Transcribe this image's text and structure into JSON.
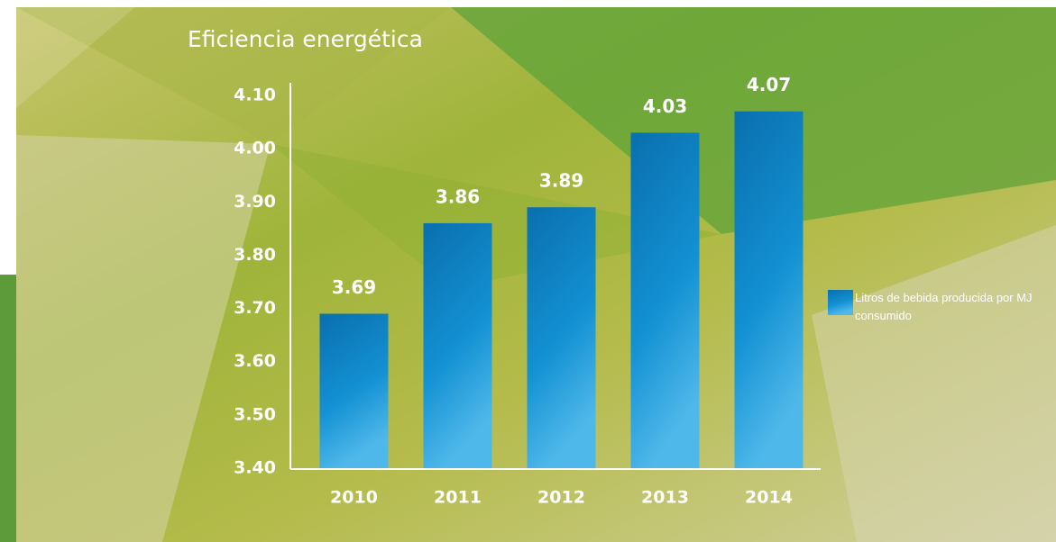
{
  "chart_data": {
    "type": "bar",
    "title": "Eficiencia energética",
    "categories": [
      "2010",
      "2011",
      "2012",
      "2013",
      "2014"
    ],
    "series": [
      {
        "name": "Litros de bebida producida por MJ consumido",
        "color": "#0f86c8",
        "values": [
          3.69,
          3.86,
          3.89,
          4.03,
          4.07
        ]
      }
    ],
    "ylim": [
      3.4,
      4.1
    ],
    "yticks": [
      {
        "value": 3.4,
        "label": "3.40"
      },
      {
        "value": 3.5,
        "label": "3.50"
      },
      {
        "value": 3.6,
        "label": "3.60"
      },
      {
        "value": 3.7,
        "label": "3.70"
      },
      {
        "value": 3.8,
        "label": "3.80"
      },
      {
        "value": 3.9,
        "label": "3.90"
      },
      {
        "value": 4.0,
        "label": "4.00"
      },
      {
        "value": 4.1,
        "label": "4.10"
      }
    ],
    "legend": "right"
  }
}
